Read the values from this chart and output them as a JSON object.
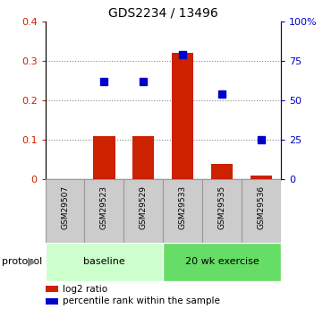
{
  "title": "GDS2234 / 13496",
  "samples": [
    "GSM29507",
    "GSM29523",
    "GSM29529",
    "GSM29533",
    "GSM29535",
    "GSM29536"
  ],
  "log2_ratio": [
    0.0,
    0.11,
    0.11,
    0.32,
    0.04,
    0.01
  ],
  "percentile_rank": [
    0.0,
    0.62,
    0.62,
    0.79,
    0.54,
    0.25
  ],
  "bar_color": "#cc2200",
  "dot_color": "#0000cc",
  "left_ylim": [
    0,
    0.4
  ],
  "right_ylim": [
    0,
    1.0
  ],
  "left_yticks": [
    0,
    0.1,
    0.2,
    0.3,
    0.4
  ],
  "right_yticks": [
    0,
    0.25,
    0.5,
    0.75,
    1.0
  ],
  "right_yticklabels": [
    "0",
    "25",
    "50",
    "75",
    "100%"
  ],
  "left_yticklabels": [
    "0",
    "0.1",
    "0.2",
    "0.3",
    "0.4"
  ],
  "left_tick_color": "#cc2200",
  "right_tick_color": "#0000cc",
  "protocol_groups": [
    {
      "label": "baseline",
      "indices": [
        0,
        1,
        2
      ],
      "color": "#ccffcc"
    },
    {
      "label": "20 wk exercise",
      "indices": [
        3,
        4,
        5
      ],
      "color": "#66dd66"
    }
  ],
  "protocol_label": "protocol",
  "legend_items": [
    {
      "label": "log2 ratio",
      "color": "#cc2200"
    },
    {
      "label": "percentile rank within the sample",
      "color": "#0000cc"
    }
  ],
  "grid_color": "#888888",
  "sample_box_color": "#cccccc",
  "sample_box_edge": "#999999",
  "bar_width": 0.55,
  "dot_size": 5.5
}
